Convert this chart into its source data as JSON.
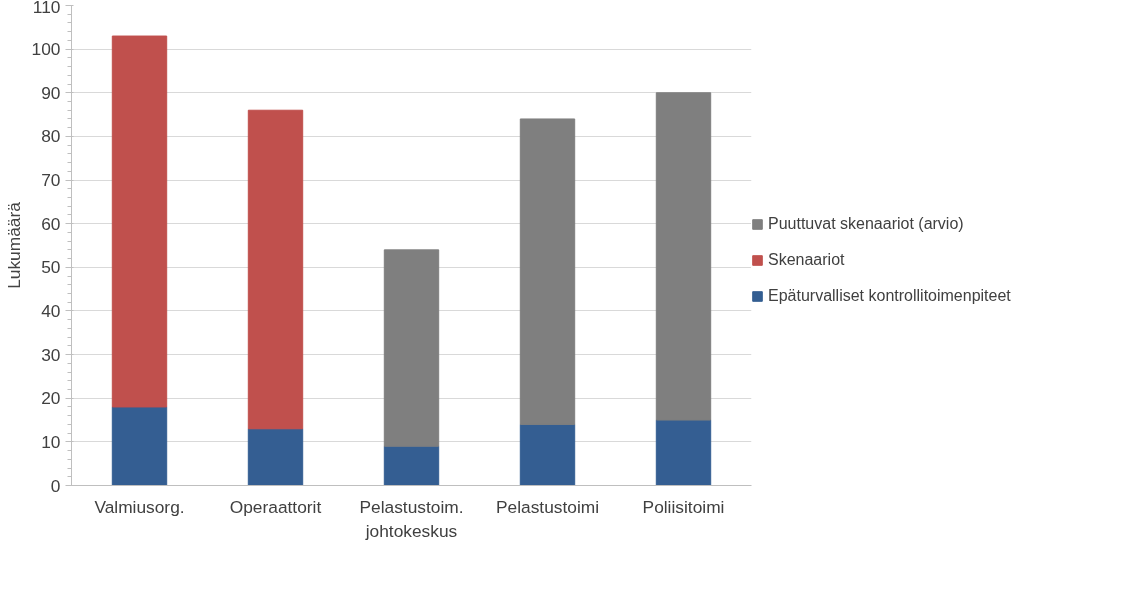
{
  "chart_data": {
    "type": "bar",
    "stacked": true,
    "ylabel": "Lukumäärä",
    "categories": [
      "Valmiusorg.",
      "Operaattorit",
      "Pelastustoim. johtokeskus",
      "Pelastustoimi",
      "Poliisitoimi"
    ],
    "series": [
      {
        "name": "Epäturvalliset kontrollitoimenpiteet",
        "color": "#345e92",
        "values": [
          18,
          13,
          9,
          14,
          15
        ]
      },
      {
        "name": "Skenaariot",
        "color": "#c0504d",
        "values": [
          85,
          73,
          null,
          null,
          null
        ]
      },
      {
        "name": "Puuttuvat skenaariot (arvio)",
        "color": "#7f7f7f",
        "values": [
          null,
          null,
          45,
          70,
          75
        ]
      }
    ],
    "ylim": [
      0,
      110
    ],
    "yticks": [
      0,
      10,
      20,
      30,
      40,
      50,
      60,
      70,
      80,
      90,
      100,
      110
    ],
    "grid": "y",
    "legend": "right"
  }
}
